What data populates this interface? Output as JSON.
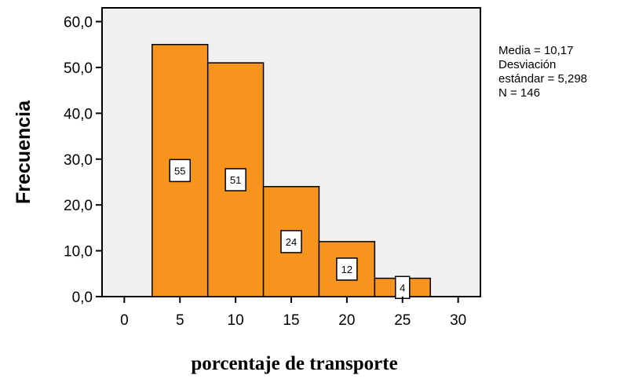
{
  "chart_data": {
    "type": "bar",
    "variant": "histogram",
    "bins": [
      {
        "start": 2.5,
        "end": 7.5,
        "count": 55,
        "label": "55"
      },
      {
        "start": 7.5,
        "end": 12.5,
        "count": 51,
        "label": "51"
      },
      {
        "start": 12.5,
        "end": 17.5,
        "count": 24,
        "label": "24"
      },
      {
        "start": 17.5,
        "end": 22.5,
        "count": 12,
        "label": "12"
      },
      {
        "start": 22.5,
        "end": 27.5,
        "count": 4,
        "label": "4"
      }
    ],
    "xlabel": "porcentaje de transporte",
    "ylabel": "Frecuencia",
    "xlim": [
      -2,
      32
    ],
    "ylim": [
      0,
      63
    ],
    "x_ticks": [
      0,
      5,
      10,
      15,
      20,
      25,
      30
    ],
    "x_tick_labels": [
      "0",
      "5",
      "10",
      "15",
      "20",
      "25",
      "30"
    ],
    "y_ticks": [
      0,
      10,
      20,
      30,
      40,
      50,
      60
    ],
    "y_tick_labels": [
      "0,0",
      "10,0",
      "20,0",
      "30,0",
      "40,0",
      "50,0",
      "60,0"
    ],
    "grid": false,
    "legend": "none",
    "bar_color": "#f7941d",
    "plot_background": "#f0f0f0",
    "stats": {
      "line1": "Media = 10,17",
      "line2": "Desviación",
      "line3": "estándar = 5,298",
      "line4": "N = 146"
    }
  }
}
